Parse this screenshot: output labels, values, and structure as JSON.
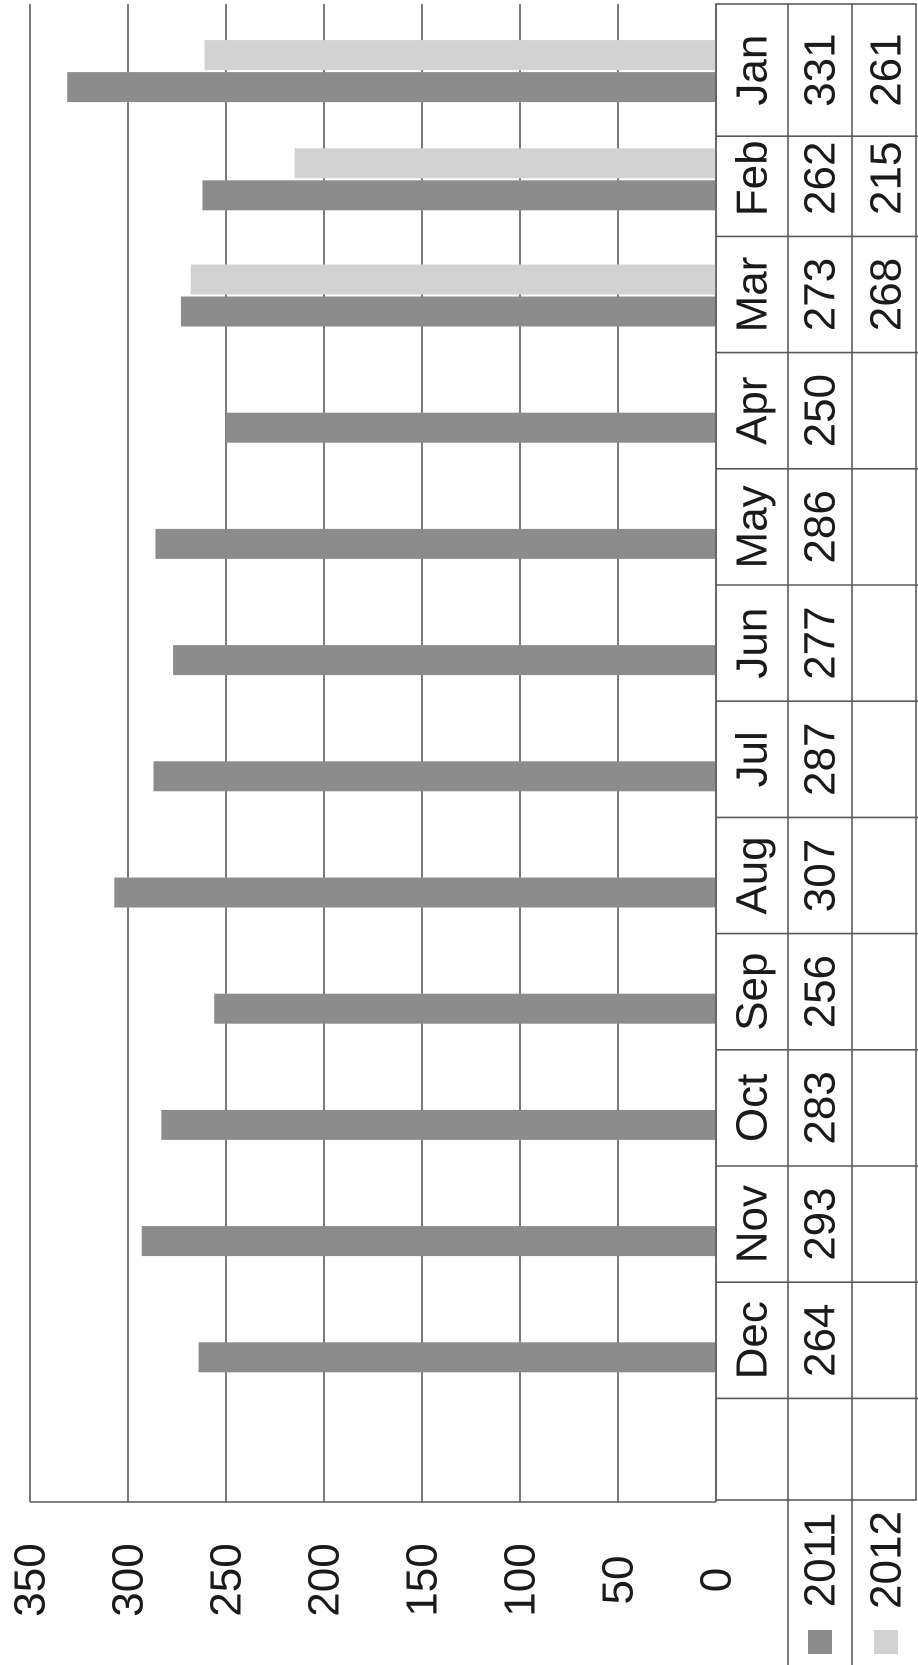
{
  "chart_data": {
    "type": "bar",
    "orientation": "rotated-90-clockwise",
    "categories": [
      "Jan",
      "Feb",
      "Mar",
      "Apr",
      "May",
      "Jun",
      "Jul",
      "Aug",
      "Sep",
      "Oct",
      "Nov",
      "Dec"
    ],
    "series": [
      {
        "name": "2011",
        "color": "#8c8c8c",
        "values": [
          331,
          262,
          273,
          250,
          286,
          277,
          287,
          307,
          256,
          283,
          293,
          264
        ]
      },
      {
        "name": "2012",
        "color": "#d2d2d2",
        "values": [
          261,
          215,
          268,
          null,
          null,
          null,
          null,
          null,
          null,
          null,
          null,
          null
        ]
      }
    ],
    "ylim": [
      0,
      350
    ],
    "yticks": [
      0,
      50,
      100,
      150,
      200,
      250,
      300,
      350
    ],
    "grid": true,
    "data_table": true,
    "legend": "data-table"
  }
}
